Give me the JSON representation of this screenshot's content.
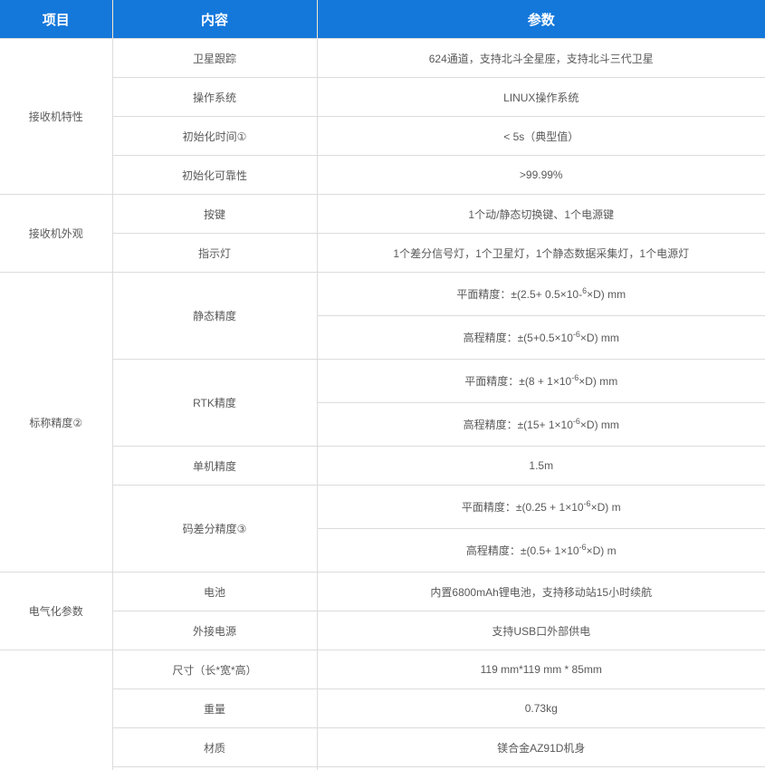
{
  "table": {
    "headers": [
      {
        "label": "项目"
      },
      {
        "label": "内容"
      },
      {
        "label": "参数"
      }
    ],
    "sections": [
      {
        "item": "接收机特性",
        "rows": [
          {
            "content": "卫星跟踪",
            "params": [
              "624通道，支持北斗全星座，支持北斗三代卫星"
            ]
          },
          {
            "content": "操作系统",
            "params": [
              "LINUX操作系统"
            ]
          },
          {
            "content": "初始化时间①",
            "params": [
              "< 5s（典型值）"
            ]
          },
          {
            "content": "初始化可靠性",
            "params": [
              ">99.99%"
            ]
          }
        ]
      },
      {
        "item": "接收机外观",
        "rows": [
          {
            "content": "按键",
            "params": [
              "1个动/静态切换键、1个电源键"
            ]
          },
          {
            "content": "指示灯",
            "params": [
              "1个差分信号灯，1个卫星灯，1个静态数据采集灯，1个电源灯"
            ]
          }
        ]
      },
      {
        "item": "标称精度②",
        "rows": [
          {
            "content": "静态精度",
            "params": [
              [
                {
                  "t": "平面精度：±(2.5+ 0.5×10-"
                },
                {
                  "t": "6",
                  "sup": true
                },
                {
                  "t": "×D) mm"
                }
              ],
              [
                {
                  "t": "高程精度：±(5+0.5×10"
                },
                {
                  "t": "-6",
                  "sup": true
                },
                {
                  "t": "×D) mm"
                }
              ]
            ]
          },
          {
            "content": "RTK精度",
            "params": [
              [
                {
                  "t": "平面精度：±(8 + 1×10"
                },
                {
                  "t": "-6",
                  "sup": true
                },
                {
                  "t": "×D) mm"
                }
              ],
              [
                {
                  "t": "高程精度：±(15+ 1×10"
                },
                {
                  "t": "-6",
                  "sup": true
                },
                {
                  "t": "×D) mm"
                }
              ]
            ]
          },
          {
            "content": "单机精度",
            "params": [
              "1.5m"
            ]
          },
          {
            "content": "码差分精度③",
            "params": [
              [
                {
                  "t": "平面精度：±(0.25 + 1×10"
                },
                {
                  "t": "-6",
                  "sup": true
                },
                {
                  "t": "×D) m"
                }
              ],
              [
                {
                  "t": "高程精度：±(0.5+ 1×10"
                },
                {
                  "t": "-6",
                  "sup": true
                },
                {
                  "t": "×D) m"
                }
              ]
            ]
          }
        ]
      },
      {
        "item": "电气化参数",
        "rows": [
          {
            "content": "电池",
            "params": [
              "内置6800mAh锂电池，支持移动站15小时续航"
            ]
          },
          {
            "content": "外接电源",
            "params": [
              "支持USB口外部供电"
            ]
          }
        ]
      },
      {
        "item": "",
        "rows": [
          {
            "content": "尺寸（长*宽*高）",
            "params": [
              "119 mm*119 mm * 85mm"
            ]
          },
          {
            "content": "重量",
            "params": [
              "0.73kg"
            ]
          },
          {
            "content": "材质",
            "params": [
              "镁合金AZ91D机身"
            ]
          },
          {
            "content": "",
            "params": [
              ""
            ]
          }
        ]
      }
    ],
    "colors": {
      "header_background": "#1478db",
      "header_text": "#ffffff",
      "header_separator": "#f3e7c9",
      "grid_line": "#dcdcdc",
      "body_text": "#595959"
    }
  }
}
